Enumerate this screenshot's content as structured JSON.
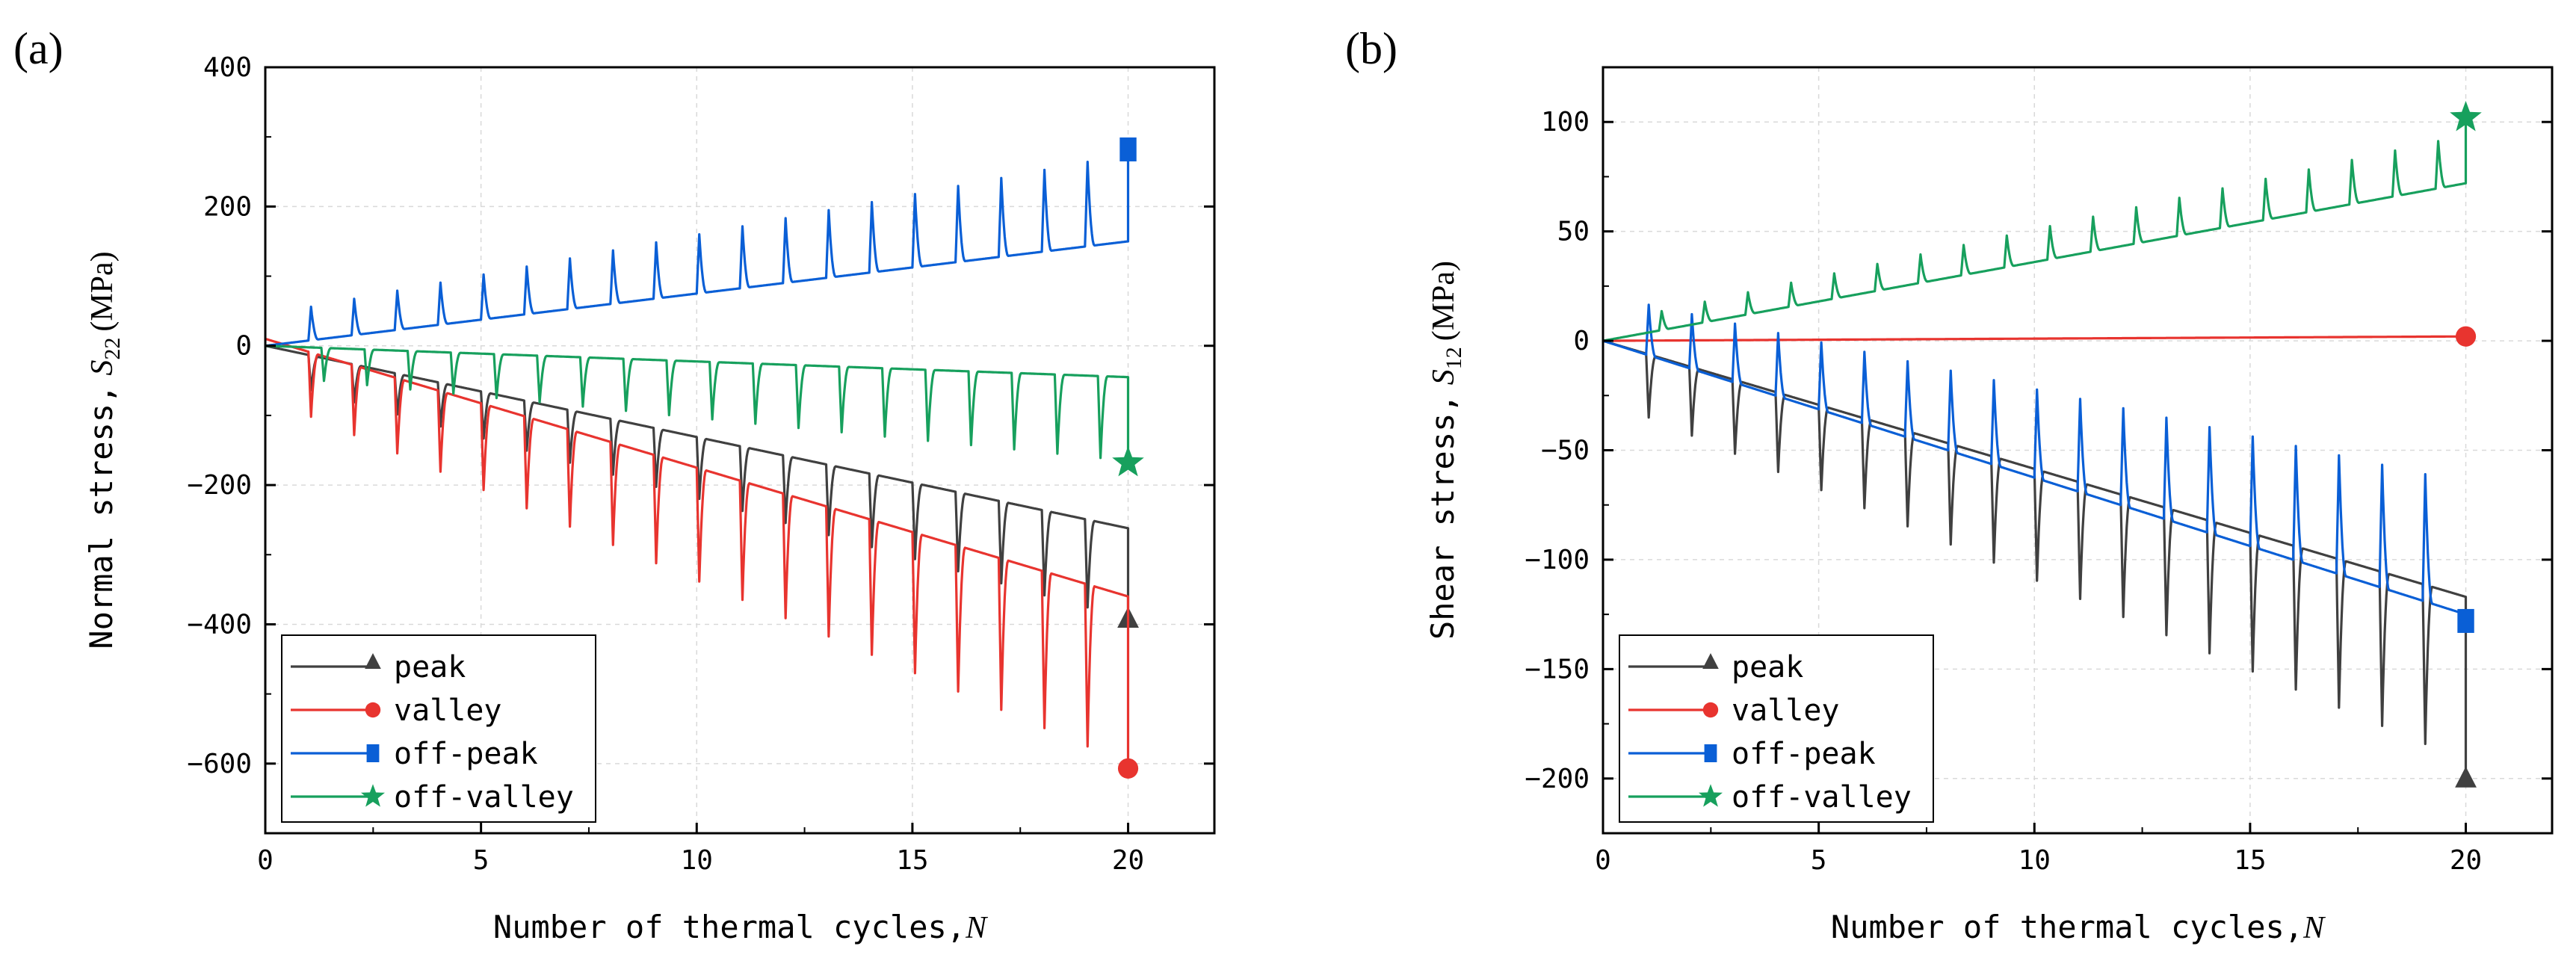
{
  "chart_data": [
    {
      "panel": "(a)",
      "type": "line",
      "xlabel": "Number of thermal cycles,",
      "xlabel_var": "N",
      "ylabel": "Normal stress,",
      "ylabel_var": "S",
      "ylabel_sub": "22",
      "ylabel_unit": "(MPa)",
      "xlim": [
        0,
        22
      ],
      "ylim": [
        -700,
        400
      ],
      "xticks": [
        0,
        5,
        10,
        15,
        20
      ],
      "yticks": [
        -600,
        -400,
        -200,
        0,
        200,
        400
      ],
      "grid": true,
      "legend_position": "bottom-left",
      "series": [
        {
          "name": "peak",
          "color": "#404040",
          "marker": "triangle",
          "start": 0,
          "end": -262,
          "spike": 0,
          "dip": -130,
          "final_marker": -392,
          "cycle_offset": 0
        },
        {
          "name": "valley",
          "color": "#e8342f",
          "marker": "circle",
          "start": 10,
          "end": -360,
          "spike": 0,
          "dip": -240,
          "final_marker": -607,
          "cycle_offset": 0
        },
        {
          "name": "off-peak",
          "color": "#0a5fd6",
          "marker": "square",
          "start": 0,
          "end": 150,
          "spike": 125,
          "dip": 0,
          "final_marker": 282,
          "cycle_offset": 0
        },
        {
          "name": "off-valley",
          "color": "#17a05d",
          "marker": "star",
          "start": 0,
          "end": -45,
          "spike": 0,
          "dip": -120,
          "final_marker": -168,
          "cycle_offset": 0.3
        }
      ]
    },
    {
      "panel": "(b)",
      "type": "line",
      "xlabel": "Number of thermal cycles,",
      "xlabel_var": "N",
      "ylabel": "Shear stress,",
      "ylabel_var": "S",
      "ylabel_sub": "12",
      "ylabel_unit": "(MPa)",
      "xlim": [
        0,
        22
      ],
      "ylim": [
        -225,
        125
      ],
      "xticks": [
        0,
        5,
        10,
        15,
        20
      ],
      "yticks": [
        -200,
        -150,
        -100,
        -50,
        0,
        50,
        100
      ],
      "grid": true,
      "legend_position": "bottom-left",
      "series": [
        {
          "name": "peak",
          "color": "#404040",
          "marker": "triangle",
          "start": 0,
          "end": -117,
          "spike": 0,
          "dip": -75,
          "final_marker": -200,
          "cycle_offset": 0
        },
        {
          "name": "valley",
          "color": "#e8342f",
          "marker": "circle",
          "start": 0,
          "end": 2,
          "spike": 0,
          "dip": 0,
          "final_marker": 2,
          "cycle_offset": 0
        },
        {
          "name": "off-peak",
          "color": "#0a5fd6",
          "marker": "square",
          "start": 0,
          "end": -125,
          "spike": 60,
          "dip": 0,
          "final_marker": -128,
          "cycle_offset": 0
        },
        {
          "name": "off-valley",
          "color": "#17a05d",
          "marker": "star",
          "start": 0,
          "end": 72,
          "spike": 22,
          "dip": 0,
          "final_marker": 102,
          "cycle_offset": 0.3
        }
      ]
    }
  ]
}
